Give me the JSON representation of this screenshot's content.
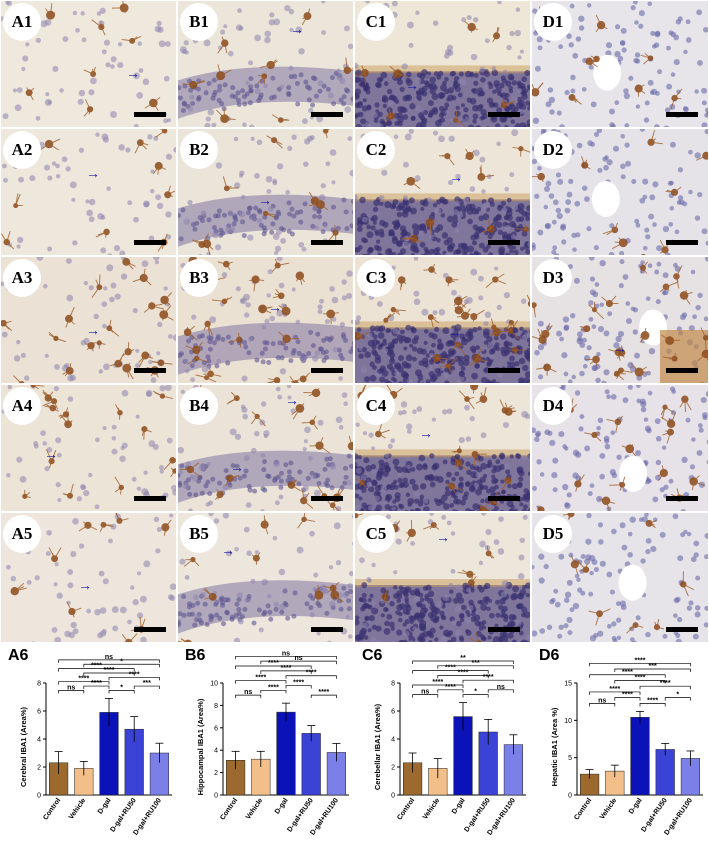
{
  "panels": [
    {
      "col": 0,
      "row": 0,
      "label": "A1",
      "type": "cortex",
      "bg": "#efe9dd",
      "arrows": [
        [
          126,
          66
        ]
      ]
    },
    {
      "col": 1,
      "row": 0,
      "label": "B1",
      "type": "hippo",
      "bg": "#ece6da",
      "arrows": [
        [
          290,
          22
        ]
      ]
    },
    {
      "col": 2,
      "row": 0,
      "label": "C1",
      "type": "cereb",
      "bg": "#eee6d6",
      "arrows": [
        [
          405,
          78
        ]
      ]
    },
    {
      "col": 3,
      "row": 0,
      "label": "D1",
      "type": "liver",
      "bg": "#e7e5ea",
      "arrows": []
    },
    {
      "col": 0,
      "row": 1,
      "label": "A2",
      "type": "cortex",
      "bg": "#eee7dc",
      "arrows": [
        [
          86,
          166
        ]
      ]
    },
    {
      "col": 1,
      "row": 1,
      "label": "B2",
      "type": "hippo",
      "bg": "#ebe4d9",
      "arrows": [
        [
          258,
          193
        ]
      ]
    },
    {
      "col": 2,
      "row": 1,
      "label": "C2",
      "type": "cereb",
      "bg": "#ede6d8",
      "arrows": [
        [
          449,
          170
        ]
      ]
    },
    {
      "col": 3,
      "row": 1,
      "label": "D2",
      "type": "liver",
      "bg": "#e6e3e8",
      "arrows": []
    },
    {
      "col": 0,
      "row": 2,
      "label": "A3",
      "type": "cortex",
      "bg": "#ebe1d4",
      "arrows": [
        [
          86,
          323
        ]
      ]
    },
    {
      "col": 1,
      "row": 2,
      "label": "B3",
      "type": "hippo",
      "bg": "#ebe1d2",
      "arrows": [
        [
          268,
          300
        ]
      ]
    },
    {
      "col": 2,
      "row": 2,
      "label": "C3",
      "type": "cereb",
      "bg": "#ece3d4",
      "arrows": [
        [
          448,
          325
        ]
      ]
    },
    {
      "col": 3,
      "row": 2,
      "label": "D3",
      "type": "liver",
      "bg": "#e6e1e3",
      "arrows": [
        [
          613,
          341
        ]
      ]
    },
    {
      "col": 0,
      "row": 3,
      "label": "A4",
      "type": "cortex",
      "bg": "#ede4d8",
      "arrows": [
        [
          44,
          447
        ]
      ]
    },
    {
      "col": 1,
      "row": 3,
      "label": "B4",
      "type": "hippo",
      "bg": "#ebe3d8",
      "arrows": [
        [
          285,
          393
        ],
        [
          230,
          460
        ]
      ]
    },
    {
      "col": 2,
      "row": 3,
      "label": "C4",
      "type": "cereb",
      "bg": "#ede5d8",
      "arrows": [
        [
          419,
          426
        ]
      ]
    },
    {
      "col": 3,
      "row": 3,
      "label": "D4",
      "type": "liver",
      "bg": "#e6e2e8",
      "arrows": []
    },
    {
      "col": 0,
      "row": 4,
      "label": "A5",
      "type": "cortex",
      "bg": "#eee6dc",
      "arrows": [
        [
          78,
          578
        ]
      ]
    },
    {
      "col": 1,
      "row": 4,
      "label": "B5",
      "type": "hippo",
      "bg": "#ece6dc",
      "arrows": [
        [
          221,
          543
        ]
      ]
    },
    {
      "col": 2,
      "row": 4,
      "label": "C5",
      "type": "cereb",
      "bg": "#ede6da",
      "arrows": [
        [
          436,
          530
        ]
      ]
    },
    {
      "col": 3,
      "row": 4,
      "label": "D5",
      "type": "liver",
      "bg": "#e7e4e9",
      "arrows": []
    }
  ],
  "chart_data": [
    {
      "type": "bar",
      "panel_label": "A6",
      "ylabel": "Cerebral IBA1 (Area%)",
      "categories": [
        "Control",
        "Vehicle",
        "D-gal",
        "D-gal+RU50",
        "D-gal+RU100"
      ],
      "values": [
        2.3,
        1.9,
        5.9,
        4.7,
        3.0
      ],
      "errors": [
        0.8,
        0.5,
        1.0,
        0.9,
        0.7
      ],
      "ylim": [
        0,
        8
      ],
      "yticks": [
        0,
        2,
        4,
        6,
        8
      ],
      "bar_colors": [
        "#9c6a2e",
        "#f2bf8a",
        "#0b12b8",
        "#3b43d6",
        "#7a80e8"
      ],
      "comparisons": [
        {
          "a": 0,
          "b": 1,
          "label": "ns"
        },
        {
          "a": 1,
          "b": 2,
          "label": "****"
        },
        {
          "a": 2,
          "b": 3,
          "label": "*"
        },
        {
          "a": 3,
          "b": 4,
          "label": "***"
        },
        {
          "a": 0,
          "b": 2,
          "label": "****"
        },
        {
          "a": 2,
          "b": 4,
          "label": "****"
        },
        {
          "a": 1,
          "b": 3,
          "label": "****"
        },
        {
          "a": 0,
          "b": 3,
          "label": "****"
        },
        {
          "a": 1,
          "b": 4,
          "label": "*"
        },
        {
          "a": 0,
          "b": 4,
          "label": "ns"
        }
      ]
    },
    {
      "type": "bar",
      "panel_label": "B6",
      "ylabel": "Hippocampal IBA1 (Area%)",
      "categories": [
        "Control",
        "Vehicle",
        "D-gal",
        "D-gal+RU50",
        "D-gal+RU100"
      ],
      "values": [
        3.1,
        3.2,
        7.4,
        5.5,
        3.8
      ],
      "errors": [
        0.8,
        0.7,
        0.8,
        0.7,
        0.8
      ],
      "ylim": [
        0,
        10
      ],
      "yticks": [
        0,
        2,
        4,
        6,
        8,
        10
      ],
      "bar_colors": [
        "#9c6a2e",
        "#f2bf8a",
        "#0b12b8",
        "#3b43d6",
        "#7a80e8"
      ],
      "comparisons": [
        {
          "a": 0,
          "b": 1,
          "label": "ns"
        },
        {
          "a": 1,
          "b": 2,
          "label": "****"
        },
        {
          "a": 3,
          "b": 4,
          "label": "****"
        },
        {
          "a": 2,
          "b": 3,
          "label": "****"
        },
        {
          "a": 0,
          "b": 2,
          "label": "****"
        },
        {
          "a": 2,
          "b": 4,
          "label": "****"
        },
        {
          "a": 1,
          "b": 3,
          "label": "****"
        },
        {
          "a": 0,
          "b": 3,
          "label": "****"
        },
        {
          "a": 1,
          "b": 4,
          "label": "ns"
        },
        {
          "a": 0,
          "b": 4,
          "label": "ns"
        }
      ]
    },
    {
      "type": "bar",
      "panel_label": "C6",
      "ylabel": "Cerebellar IBA1 (Area%)",
      "categories": [
        "Control",
        "Vehicle",
        "D-gal",
        "D-gal+RU50",
        "D-gal+RU100"
      ],
      "values": [
        2.3,
        1.9,
        5.6,
        4.5,
        3.6
      ],
      "errors": [
        0.7,
        0.7,
        1.0,
        0.9,
        0.7
      ],
      "ylim": [
        0,
        8
      ],
      "yticks": [
        0,
        2,
        4,
        6,
        8
      ],
      "bar_colors": [
        "#9c6a2e",
        "#f2bf8a",
        "#0b12b8",
        "#3b43d6",
        "#7a80e8"
      ],
      "comparisons": [
        {
          "a": 0,
          "b": 1,
          "label": "ns"
        },
        {
          "a": 1,
          "b": 2,
          "label": "****"
        },
        {
          "a": 2,
          "b": 3,
          "label": "*"
        },
        {
          "a": 3,
          "b": 4,
          "label": "ns"
        },
        {
          "a": 0,
          "b": 2,
          "label": "****"
        },
        {
          "a": 2,
          "b": 4,
          "label": "****"
        },
        {
          "a": 1,
          "b": 3,
          "label": "****"
        },
        {
          "a": 0,
          "b": 3,
          "label": "****"
        },
        {
          "a": 1,
          "b": 4,
          "label": "***"
        },
        {
          "a": 0,
          "b": 4,
          "label": "**"
        }
      ]
    },
    {
      "type": "bar",
      "panel_label": "D6",
      "ylabel": "Hepatic IBA1 (Area %)",
      "categories": [
        "Control",
        "Vehicle",
        "D-gal",
        "D-gal+RU50",
        "D-gal+RU100"
      ],
      "values": [
        2.8,
        3.2,
        10.4,
        6.1,
        4.9
      ],
      "errors": [
        0.6,
        0.8,
        0.8,
        0.8,
        1.0
      ],
      "ylim": [
        0,
        15
      ],
      "yticks": [
        0,
        5,
        10,
        15
      ],
      "bar_colors": [
        "#9c6a2e",
        "#f2bf8a",
        "#0b12b8",
        "#3b43d6",
        "#7a80e8"
      ],
      "comparisons": [
        {
          "a": 0,
          "b": 1,
          "label": "ns"
        },
        {
          "a": 1,
          "b": 2,
          "label": "****"
        },
        {
          "a": 2,
          "b": 3,
          "label": "****"
        },
        {
          "a": 3,
          "b": 4,
          "label": "*"
        },
        {
          "a": 0,
          "b": 2,
          "label": "****"
        },
        {
          "a": 2,
          "b": 4,
          "label": "****"
        },
        {
          "a": 1,
          "b": 3,
          "label": "****"
        },
        {
          "a": 0,
          "b": 3,
          "label": "****"
        },
        {
          "a": 1,
          "b": 4,
          "label": "***"
        },
        {
          "a": 0,
          "b": 4,
          "label": "****"
        }
      ]
    }
  ]
}
